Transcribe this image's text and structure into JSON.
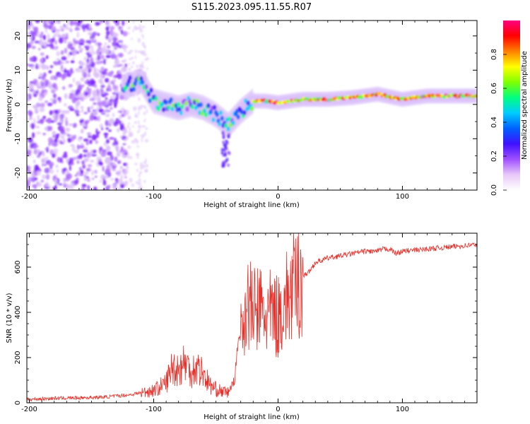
{
  "title": "S115.2023.095.11.55.R07",
  "colors": {
    "snr_line": "#e8302a",
    "colorbar": [
      "#ffffff",
      "#e8c8f8",
      "#a050ff",
      "#4010ff",
      "#0060ff",
      "#00ccff",
      "#00ff80",
      "#80ff00",
      "#ffff00",
      "#ff8000",
      "#ff0000",
      "#ff0080"
    ]
  },
  "chart_data": [
    {
      "type": "heatmap",
      "name": "spectrogram",
      "xlabel": "Height of straight line (km)",
      "ylabel": "Frequency (Hz)",
      "xlim": [
        -202,
        160
      ],
      "ylim": [
        -25,
        24.5
      ],
      "xticks": [
        -200,
        -100,
        0,
        100
      ],
      "xtick_labels": [
        "-200",
        "-100",
        "0",
        "100"
      ],
      "yticks": [
        -20,
        -10,
        0,
        10,
        20
      ],
      "ytick_labels": [
        "-20",
        "-10",
        "0",
        "10",
        "20"
      ],
      "colorbar": {
        "label": "Normalized spectral amplitude",
        "range": [
          0,
          1
        ],
        "ticks": [
          0,
          0.2,
          0.4,
          0.6,
          0.8
        ],
        "tick_labels": [
          "0.0",
          "0.2",
          "0.4",
          "0.6",
          "0.8"
        ]
      },
      "ridge": {
        "x": [
          -125,
          -110,
          -100,
          -90,
          -80,
          -70,
          -60,
          -50,
          -40,
          -30,
          -20,
          -10,
          0,
          20,
          40,
          60,
          80,
          100,
          120,
          140,
          160
        ],
        "freq": [
          5,
          7,
          1,
          0,
          -1,
          0,
          -1,
          -3,
          -6,
          -2,
          1,
          1,
          0.5,
          1.5,
          1.5,
          2,
          3,
          1.5,
          2.5,
          2.5,
          2.5
        ]
      }
    },
    {
      "type": "line",
      "name": "snr",
      "xlabel": "Height of straight line (km)",
      "ylabel": "SNR (10 * v/v)",
      "xlim": [
        -202,
        160
      ],
      "ylim": [
        0,
        750
      ],
      "xticks": [
        -200,
        -100,
        0,
        100
      ],
      "xtick_labels": [
        "-200",
        "-100",
        "0",
        "100"
      ],
      "yticks": [
        0,
        200,
        400,
        600
      ],
      "ytick_labels": [
        "0",
        "200",
        "400",
        "600"
      ],
      "series": [
        {
          "name": "SNR",
          "x": [
            -202,
            -180,
            -160,
            -140,
            -120,
            -110,
            -100,
            -95,
            -90,
            -85,
            -80,
            -75,
            -70,
            -65,
            -60,
            -55,
            -50,
            -45,
            -40,
            -35,
            -32,
            -30,
            -25,
            -20,
            -15,
            -10,
            -5,
            0,
            5,
            10,
            15,
            20,
            25,
            30,
            40,
            50,
            60,
            70,
            80,
            85,
            90,
            95,
            100,
            110,
            120,
            130,
            140,
            150,
            160
          ],
          "values": [
            15,
            20,
            22,
            25,
            35,
            45,
            55,
            70,
            90,
            160,
            150,
            180,
            140,
            160,
            130,
            80,
            60,
            50,
            45,
            100,
            280,
            300,
            450,
            400,
            420,
            380,
            400,
            380,
            440,
            480,
            520,
            560,
            580,
            620,
            640,
            650,
            660,
            670,
            670,
            680,
            680,
            660,
            670,
            675,
            680,
            685,
            690,
            695,
            700
          ]
        }
      ]
    }
  ]
}
